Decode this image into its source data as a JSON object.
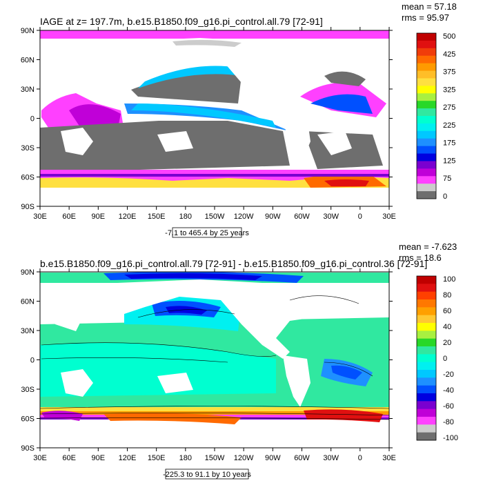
{
  "panels": [
    {
      "title": "IAGE at z= 197.7m, b.e15.B1850.f09_g16.pi_control.all.79 [72-91]",
      "mean": "mean = 57.18",
      "rms": "rms = 95.97",
      "range_note": "-7.1 to 465.4 by 25 years",
      "lat_labels": [
        "90N",
        "60N",
        "30N",
        "0",
        "30S",
        "60S",
        "90S"
      ],
      "lon_labels": [
        "30E",
        "60E",
        "90E",
        "120E",
        "150E",
        "180",
        "150W",
        "120W",
        "90W",
        "60W",
        "30W",
        "0",
        "30E"
      ],
      "colorbar": {
        "labels": [
          "500",
          "425",
          "375",
          "325",
          "275",
          "225",
          "175",
          "125",
          "75",
          "0"
        ],
        "colors": [
          "#c00000",
          "#e01010",
          "#f03c0a",
          "#ff6a00",
          "#ff9a00",
          "#ffbe28",
          "#ffe040",
          "#ffff00",
          "#a8f040",
          "#28d828",
          "#30e8a0",
          "#00ffd0",
          "#00f0f0",
          "#00c8ff",
          "#1e90ff",
          "#0050ff",
          "#0000e0",
          "#7a00d0",
          "#c000d8",
          "#ff40ff",
          "#cccccc",
          "#6e6e6e"
        ]
      }
    },
    {
      "title": "b.e15.B1850.f09_g16.pi_control.all.79 [72-91] - b.e15.B1850.f09_g16.pi_control.36 [72-91]",
      "mean": "mean = -7.623",
      "rms": "rms = 18.6",
      "range_note": "-225.3 to 91.1 by 10 years",
      "lat_labels": [
        "90N",
        "60N",
        "30N",
        "0",
        "30S",
        "60S",
        "90S"
      ],
      "lon_labels": [
        "30E",
        "60E",
        "90E",
        "120E",
        "150E",
        "180",
        "150W",
        "120W",
        "90W",
        "60W",
        "30W",
        "0",
        "30E"
      ],
      "colorbar": {
        "labels": [
          "100",
          "80",
          "60",
          "40",
          "20",
          "0",
          "-20",
          "-40",
          "-60",
          "-80",
          "-100"
        ],
        "colors": [
          "#c00000",
          "#e01010",
          "#ff4000",
          "#ff7800",
          "#ffa000",
          "#ffc832",
          "#ffff00",
          "#a8f040",
          "#28d828",
          "#30e8a0",
          "#00ffd0",
          "#00f0f0",
          "#00c8ff",
          "#1e90ff",
          "#0050ff",
          "#0000e0",
          "#7a00d0",
          "#c000d8",
          "#ff40ff",
          "#cccccc",
          "#6e6e6e"
        ]
      }
    }
  ]
}
